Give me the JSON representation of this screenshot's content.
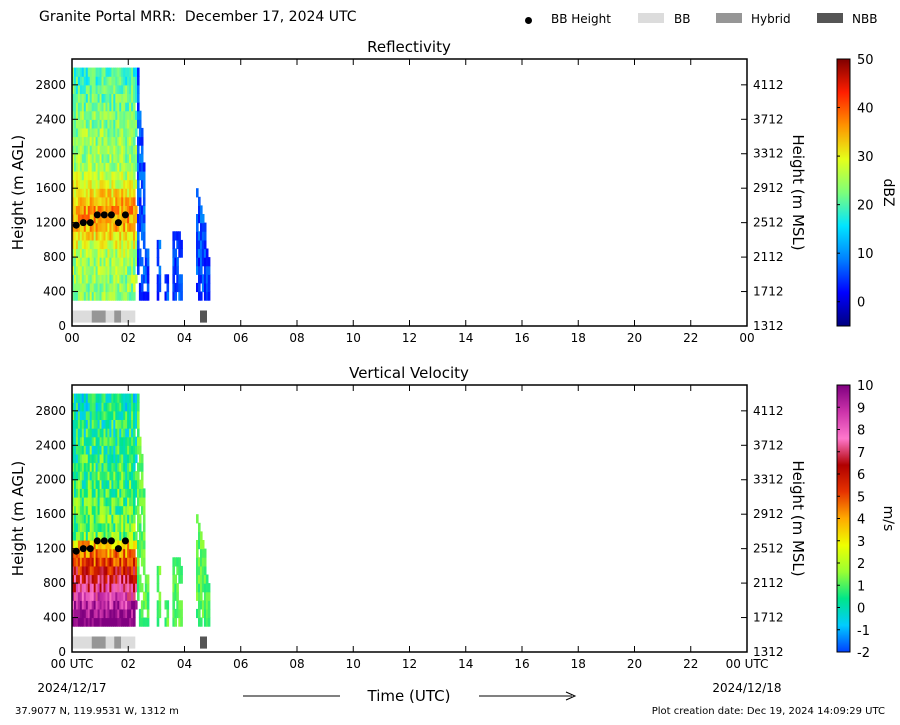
{
  "header": {
    "station": "Granite Portal MRR:",
    "date": "December 17, 2024 UTC"
  },
  "legend": {
    "items": [
      {
        "label": "BB Height",
        "kind": "dot",
        "color": "#000000"
      },
      {
        "label": "BB",
        "kind": "swatch",
        "color": "#dcdcdc"
      },
      {
        "label": "Hybrid",
        "kind": "swatch",
        "color": "#969696"
      },
      {
        "label": "NBB",
        "kind": "swatch",
        "color": "#555555"
      }
    ]
  },
  "x_axis": {
    "ticks": [
      "00",
      "02",
      "04",
      "06",
      "08",
      "10",
      "12",
      "14",
      "16",
      "18",
      "20",
      "22",
      "00"
    ],
    "bottom_ticks": [
      "00 UTC",
      "02",
      "04",
      "06",
      "08",
      "10",
      "12",
      "14",
      "16",
      "18",
      "20",
      "22",
      "00 UTC"
    ],
    "start_date": "2024/12/17",
    "end_date": "2024/12/18",
    "label": "Time (UTC)"
  },
  "footer": {
    "location": "37.9077 N, 119.9531 W, 1312 m",
    "created": "Plot creation date: Dec 19, 2024 14:09:29 UTC"
  },
  "chart_data": [
    {
      "type": "heatmap",
      "title": "Reflectivity",
      "ylabel": "Height (m AGL)",
      "ylabel_right": "Height (m MSL)",
      "yticks": [
        "0",
        "400",
        "800",
        "1200",
        "1600",
        "2000",
        "2400",
        "2800"
      ],
      "yticks_right": [
        "1312",
        "1712",
        "2112",
        "2512",
        "2912",
        "3312",
        "3712",
        "4112"
      ],
      "ylim": [
        0,
        3100
      ],
      "xlim_hours": [
        0,
        24
      ],
      "colorbar": {
        "label": "dBZ",
        "min": -5,
        "max": 50,
        "ticks": [
          "0",
          "10",
          "20",
          "30",
          "40",
          "50"
        ],
        "stops": [
          "#00007f",
          "#0000ff",
          "#0080ff",
          "#00e5ff",
          "#7dff7a",
          "#e5ff1a",
          "#ff9400",
          "#ff1e00",
          "#7f0000"
        ]
      },
      "bb_height": [
        {
          "hour": 0.15,
          "height": 1170
        },
        {
          "hour": 0.4,
          "height": 1200
        },
        {
          "hour": 0.65,
          "height": 1200
        },
        {
          "hour": 0.9,
          "height": 1290
        },
        {
          "hour": 1.15,
          "height": 1290
        },
        {
          "hour": 1.4,
          "height": 1290
        },
        {
          "hour": 1.65,
          "height": 1200
        },
        {
          "hour": 1.9,
          "height": 1290
        }
      ],
      "bb_type_segments": [
        {
          "start": 0.0,
          "end": 0.7,
          "type": "BB"
        },
        {
          "start": 0.7,
          "end": 1.2,
          "type": "Hybrid"
        },
        {
          "start": 1.2,
          "end": 1.5,
          "type": "BB"
        },
        {
          "start": 1.5,
          "end": 1.75,
          "type": "Hybrid"
        },
        {
          "start": 1.75,
          "end": 2.25,
          "type": "BB"
        },
        {
          "start": 4.55,
          "end": 4.8,
          "type": "NBB"
        }
      ]
    },
    {
      "type": "heatmap",
      "title": "Vertical Velocity",
      "ylabel": "Height (m AGL)",
      "ylabel_right": "Height (m MSL)",
      "yticks": [
        "0",
        "400",
        "800",
        "1200",
        "1600",
        "2000",
        "2400",
        "2800"
      ],
      "yticks_right": [
        "1312",
        "1712",
        "2112",
        "2512",
        "2912",
        "3312",
        "3712",
        "4112"
      ],
      "ylim": [
        0,
        3100
      ],
      "xlim_hours": [
        0,
        24
      ],
      "colorbar": {
        "label": "m/s",
        "min": -2,
        "max": 10,
        "ticks": [
          "-2",
          "-1",
          "0",
          "1",
          "2",
          "3",
          "4",
          "5",
          "6",
          "7",
          "8",
          "9",
          "10"
        ],
        "stops": [
          "#0040ff",
          "#00ccff",
          "#00e68a",
          "#99ff33",
          "#eeff00",
          "#ffaa00",
          "#e63300",
          "#b00000",
          "#ff77cc",
          "#cc33aa",
          "#800080"
        ]
      },
      "bb_height": [
        {
          "hour": 0.15,
          "height": 1170
        },
        {
          "hour": 0.4,
          "height": 1200
        },
        {
          "hour": 0.65,
          "height": 1200
        },
        {
          "hour": 0.9,
          "height": 1290
        },
        {
          "hour": 1.15,
          "height": 1290
        },
        {
          "hour": 1.4,
          "height": 1290
        },
        {
          "hour": 1.65,
          "height": 1200
        },
        {
          "hour": 1.9,
          "height": 1290
        }
      ],
      "bb_type_segments": [
        {
          "start": 0.0,
          "end": 0.7,
          "type": "BB"
        },
        {
          "start": 0.7,
          "end": 1.2,
          "type": "Hybrid"
        },
        {
          "start": 1.2,
          "end": 1.5,
          "type": "BB"
        },
        {
          "start": 1.5,
          "end": 1.75,
          "type": "Hybrid"
        },
        {
          "start": 1.75,
          "end": 2.25,
          "type": "BB"
        },
        {
          "start": 4.55,
          "end": 4.8,
          "type": "NBB"
        }
      ]
    }
  ]
}
